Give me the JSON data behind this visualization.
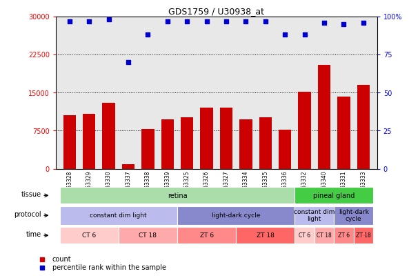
{
  "title": "GDS1759 / U30938_at",
  "samples": [
    "GSM53328",
    "GSM53329",
    "GSM53330",
    "GSM53337",
    "GSM53338",
    "GSM53339",
    "GSM53325",
    "GSM53326",
    "GSM53327",
    "GSM53334",
    "GSM53335",
    "GSM53336",
    "GSM53332",
    "GSM53340",
    "GSM53331",
    "GSM53333"
  ],
  "counts": [
    10500,
    10800,
    13000,
    900,
    7900,
    9800,
    10200,
    12000,
    12100,
    9700,
    10200,
    7700,
    15200,
    20500,
    14200,
    16500
  ],
  "percentile_ranks": [
    97,
    97,
    98,
    70,
    88,
    97,
    97,
    97,
    97,
    97,
    97,
    88,
    88,
    96,
    95,
    96
  ],
  "ylim_left": [
    0,
    30000
  ],
  "ylim_right": [
    0,
    100
  ],
  "yticks_left": [
    0,
    7500,
    15000,
    22500,
    30000
  ],
  "yticks_right": [
    0,
    25,
    50,
    75,
    100
  ],
  "bar_color": "#cc0000",
  "dot_color": "#0000cc",
  "bg_color": "#e8e8e8",
  "tissue_row": [
    {
      "label": "retina",
      "start": 0,
      "end": 12,
      "color": "#aaddaa"
    },
    {
      "label": "pineal gland",
      "start": 12,
      "end": 16,
      "color": "#44cc44"
    }
  ],
  "protocol_row": [
    {
      "label": "constant dim light",
      "start": 0,
      "end": 6,
      "color": "#bbbbee"
    },
    {
      "label": "light-dark cycle",
      "start": 6,
      "end": 12,
      "color": "#8888cc"
    },
    {
      "label": "constant dim\nlight",
      "start": 12,
      "end": 14,
      "color": "#bbbbee"
    },
    {
      "label": "light-dark\ncycle",
      "start": 14,
      "end": 16,
      "color": "#8888cc"
    }
  ],
  "time_row": [
    {
      "label": "CT 6",
      "start": 0,
      "end": 3,
      "color": "#ffcccc"
    },
    {
      "label": "CT 18",
      "start": 3,
      "end": 6,
      "color": "#ffaaaa"
    },
    {
      "label": "ZT 6",
      "start": 6,
      "end": 9,
      "color": "#ff8888"
    },
    {
      "label": "ZT 18",
      "start": 9,
      "end": 12,
      "color": "#ff6666"
    },
    {
      "label": "CT 6",
      "start": 12,
      "end": 13,
      "color": "#ffcccc"
    },
    {
      "label": "CT 18",
      "start": 13,
      "end": 14,
      "color": "#ffaaaa"
    },
    {
      "label": "ZT 6",
      "start": 14,
      "end": 15,
      "color": "#ff8888"
    },
    {
      "label": "ZT 18",
      "start": 15,
      "end": 16,
      "color": "#ff6666"
    }
  ]
}
